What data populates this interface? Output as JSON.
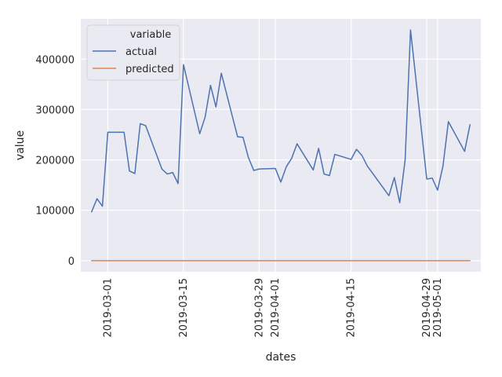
{
  "chart_data": {
    "type": "line",
    "xlabel": "dates",
    "ylabel": "value",
    "xlim": [
      "2019-02-24",
      "2019-05-09"
    ],
    "ylim": [
      -22000,
      480000
    ],
    "x_ticks": [
      "2019-03-01",
      "2019-03-15",
      "2019-03-29",
      "2019-04-01",
      "2019-04-15",
      "2019-04-29",
      "2019-05-01"
    ],
    "y_ticks": [
      0,
      100000,
      200000,
      300000,
      400000
    ],
    "y_tick_labels": [
      "0",
      "100000",
      "200000",
      "300000",
      "400000"
    ],
    "grid": true,
    "legend": {
      "title": "variable",
      "placement": "top-left"
    },
    "series": [
      {
        "name": "actual",
        "color": "#4c72b0",
        "x": [
          "2019-02-26",
          "2019-02-27",
          "2019-02-28",
          "2019-03-01",
          "2019-03-04",
          "2019-03-05",
          "2019-03-06",
          "2019-03-07",
          "2019-03-08",
          "2019-03-11",
          "2019-03-12",
          "2019-03-13",
          "2019-03-14",
          "2019-03-15",
          "2019-03-18",
          "2019-03-19",
          "2019-03-20",
          "2019-03-21",
          "2019-03-22",
          "2019-03-25",
          "2019-03-26",
          "2019-03-27",
          "2019-03-28",
          "2019-03-29",
          "2019-04-01",
          "2019-04-02",
          "2019-04-03",
          "2019-04-04",
          "2019-04-05",
          "2019-04-08",
          "2019-04-09",
          "2019-04-10",
          "2019-04-11",
          "2019-04-12",
          "2019-04-15",
          "2019-04-16",
          "2019-04-17",
          "2019-04-18",
          "2019-04-22",
          "2019-04-23",
          "2019-04-24",
          "2019-04-25",
          "2019-04-26",
          "2019-04-29",
          "2019-04-30",
          "2019-05-01",
          "2019-05-02",
          "2019-05-03",
          "2019-05-06",
          "2019-05-07"
        ],
        "values": [
          97000,
          123000,
          108000,
          255000,
          255000,
          178000,
          173000,
          272000,
          268000,
          182000,
          172000,
          175000,
          153000,
          389000,
          252000,
          285000,
          348000,
          305000,
          372000,
          246000,
          245000,
          205000,
          179000,
          182000,
          183000,
          156000,
          186000,
          203000,
          232000,
          180000,
          223000,
          172000,
          169000,
          211000,
          201000,
          221000,
          209000,
          188000,
          129000,
          165000,
          115000,
          200000,
          458000,
          162000,
          164000,
          140000,
          188000,
          276000,
          217000,
          270000
        ]
      },
      {
        "name": "predicted",
        "color": "#dd8452",
        "x": [
          "2019-02-26",
          "2019-05-07"
        ],
        "values": [
          0,
          0
        ]
      }
    ]
  }
}
